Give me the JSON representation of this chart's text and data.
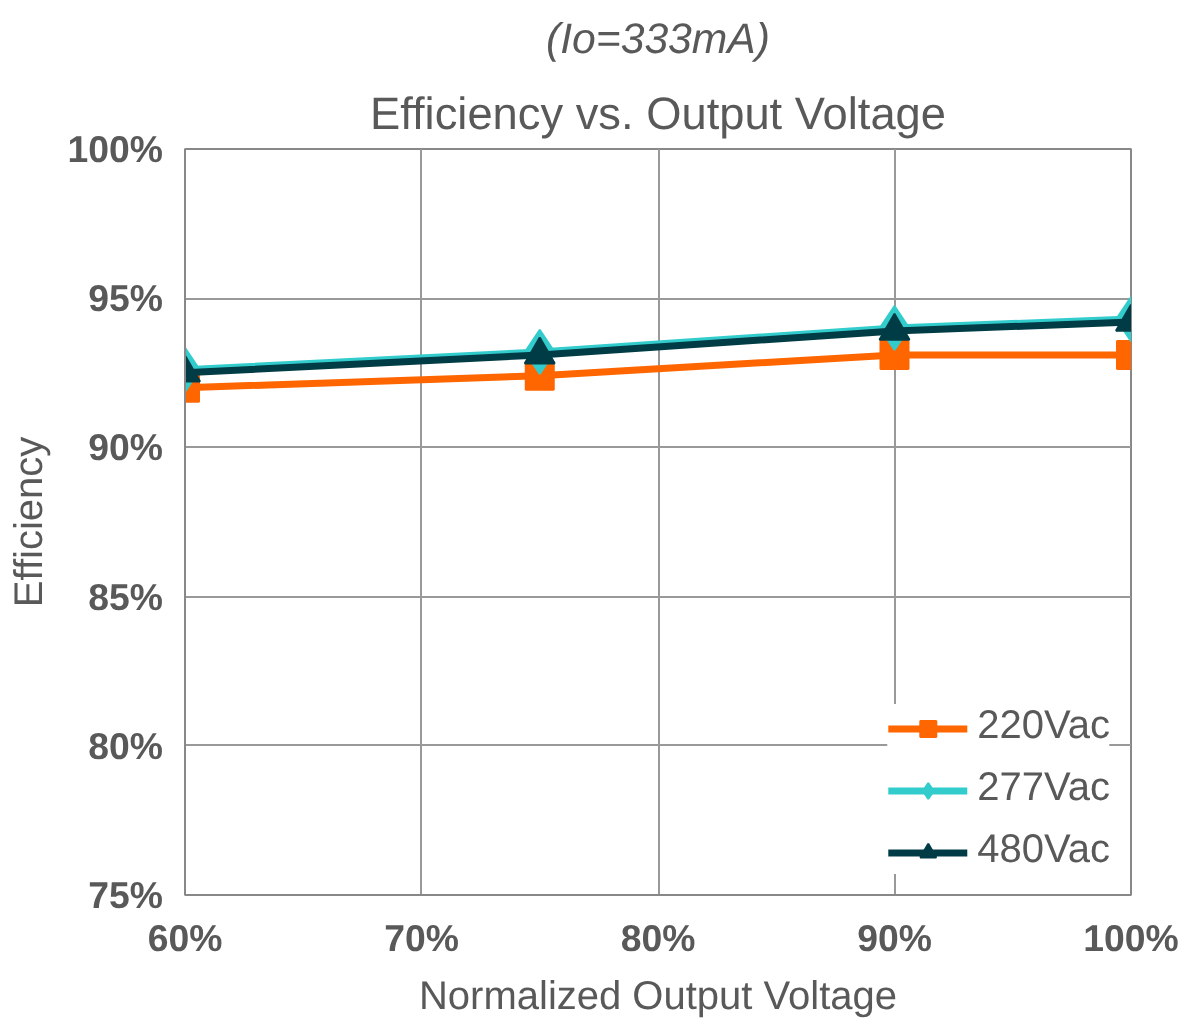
{
  "chart_data": {
    "type": "line",
    "subtitle": "(Io=333mA)",
    "title": "Efficiency vs. Output Voltage",
    "xlabel": "Normalized Output Voltage",
    "ylabel": "Efficiency",
    "x": [
      60,
      75,
      90,
      100
    ],
    "series": [
      {
        "name": "220Vac",
        "color": "#ff6600",
        "marker": "square",
        "values": [
          92.0,
          92.4,
          93.1,
          93.1
        ]
      },
      {
        "name": "277Vac",
        "color": "#33cccc",
        "marker": "diamond",
        "values": [
          92.6,
          93.2,
          94.0,
          94.3
        ]
      },
      {
        "name": "480Vac",
        "color": "#003c46",
        "marker": "triangle",
        "values": [
          92.5,
          93.1,
          93.9,
          94.2
        ]
      }
    ],
    "xlim": [
      60,
      100
    ],
    "ylim": [
      75,
      100
    ],
    "xticks": [
      {
        "value": 60,
        "label": "60%"
      },
      {
        "value": 70,
        "label": "70%"
      },
      {
        "value": 80,
        "label": "80%"
      },
      {
        "value": 90,
        "label": "90%"
      },
      {
        "value": 100,
        "label": "100%"
      }
    ],
    "yticks": [
      {
        "value": 75,
        "label": "75%"
      },
      {
        "value": 80,
        "label": "80%"
      },
      {
        "value": 85,
        "label": "85%"
      },
      {
        "value": 90,
        "label": "90%"
      },
      {
        "value": 95,
        "label": "95%"
      },
      {
        "value": 100,
        "label": "100%"
      }
    ],
    "grid": true,
    "legend": "bottom right",
    "line_style": "solid"
  }
}
